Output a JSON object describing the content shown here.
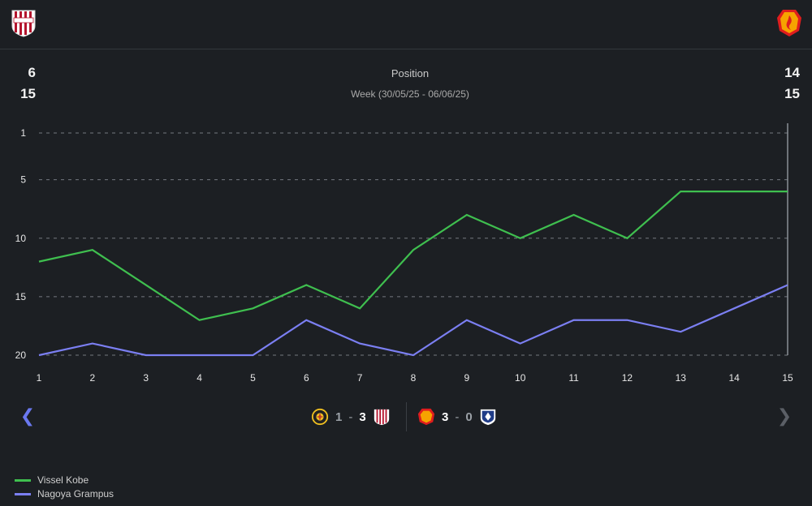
{
  "header": {
    "home_team": "Vissel Kobe",
    "away_team": "Nagoya Grampus"
  },
  "stats": {
    "left_top": "6",
    "left_bottom": "15",
    "right_top": "14",
    "right_bottom": "15"
  },
  "chart_data": {
    "type": "line",
    "title": "Position",
    "subtitle": "Week (30/05/25 - 06/06/25)",
    "x": [
      1,
      2,
      3,
      4,
      5,
      6,
      7,
      8,
      9,
      10,
      11,
      12,
      13,
      14,
      15
    ],
    "x_tick_labels": [
      "1",
      "2",
      "3",
      "4",
      "5",
      "6",
      "7",
      "8",
      "9",
      "10",
      "11",
      "12",
      "13",
      "14",
      "15"
    ],
    "y_ticks": [
      1,
      5,
      10,
      15,
      20
    ],
    "y_tick_labels": [
      "1",
      "5",
      "10",
      "15",
      "20"
    ],
    "ylim": [
      1,
      20
    ],
    "y_inverted": true,
    "grid": true,
    "series": [
      {
        "name": "Vissel Kobe",
        "color": "#3fbf4f",
        "values": [
          12,
          11,
          14,
          17,
          16,
          14,
          16,
          11,
          8,
          10,
          8,
          10,
          6,
          6,
          6
        ]
      },
      {
        "name": "Nagoya Grampus",
        "color": "#7b7ff2",
        "values": [
          20,
          19,
          20,
          20,
          20,
          17,
          19,
          20,
          17,
          19,
          17,
          17,
          18,
          16,
          14
        ]
      }
    ],
    "legend_position": "bottom-left"
  },
  "matches": [
    {
      "score_a": "1",
      "score_b": "3",
      "separator": "-"
    },
    {
      "score_a": "3",
      "score_b": "0",
      "separator": "-"
    }
  ],
  "legend": [
    {
      "label": "Vissel Kobe",
      "color": "#3fbf4f"
    },
    {
      "label": "Nagoya Grampus",
      "color": "#7b7ff2"
    }
  ],
  "nav": {
    "prev_icon": "chevron-left-icon",
    "next_icon": "chevron-right-icon"
  }
}
